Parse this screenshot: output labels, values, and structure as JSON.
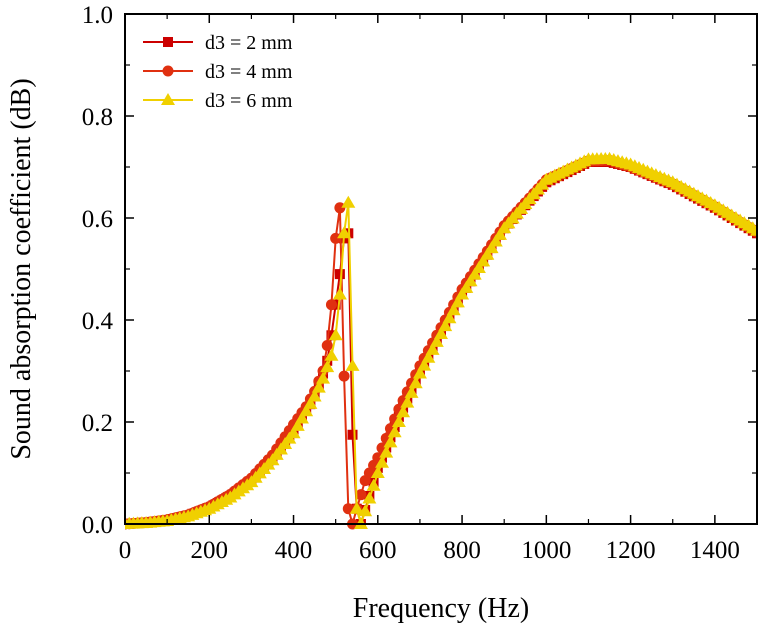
{
  "chart_data": {
    "type": "line",
    "title": "",
    "xlabel": "Frequency (Hz)",
    "ylabel": "Sound absorption coefficient (dB)",
    "xlim": [
      0,
      1500
    ],
    "ylim": [
      0.0,
      1.0
    ],
    "xticks": [
      0,
      200,
      400,
      600,
      800,
      1000,
      1200,
      1400
    ],
    "yticks": [
      0.0,
      0.2,
      0.4,
      0.6,
      0.8,
      1.0
    ],
    "xtick_labels": [
      "0",
      "200",
      "400",
      "600",
      "800",
      "1000",
      "1200",
      "1400"
    ],
    "ytick_labels": [
      "0.0",
      "0.2",
      "0.4",
      "0.6",
      "0.8",
      "1.0"
    ],
    "grid": false,
    "legend_position": "top-left",
    "series": [
      {
        "name": "d3 = 2 mm",
        "marker": "square",
        "color": "#cc0000",
        "x": [
          0,
          50,
          100,
          150,
          200,
          250,
          300,
          350,
          400,
          440,
          460,
          480,
          490,
          500,
          510,
          520,
          530,
          540,
          550,
          560,
          580,
          600,
          650,
          700,
          800,
          900,
          1000,
          1100,
          1150,
          1200,
          1300,
          1400,
          1500
        ],
        "y": [
          0.0,
          0.003,
          0.008,
          0.017,
          0.032,
          0.055,
          0.085,
          0.13,
          0.185,
          0.235,
          0.27,
          0.32,
          0.37,
          0.43,
          0.49,
          0.56,
          0.57,
          0.175,
          0.03,
          0.0,
          0.055,
          0.11,
          0.21,
          0.3,
          0.45,
          0.58,
          0.67,
          0.71,
          0.71,
          0.7,
          0.665,
          0.62,
          0.57
        ]
      },
      {
        "name": "d3 = 4 mm",
        "marker": "circle",
        "color": "#e03010",
        "x": [
          0,
          50,
          100,
          150,
          200,
          250,
          300,
          350,
          400,
          430,
          450,
          470,
          480,
          490,
          500,
          510,
          520,
          530,
          540,
          550,
          570,
          600,
          650,
          700,
          800,
          900,
          1000,
          1100,
          1150,
          1200,
          1300,
          1400,
          1500
        ],
        "y": [
          0.0,
          0.003,
          0.008,
          0.018,
          0.034,
          0.058,
          0.09,
          0.135,
          0.195,
          0.23,
          0.26,
          0.3,
          0.35,
          0.43,
          0.56,
          0.62,
          0.29,
          0.03,
          0.0,
          0.03,
          0.085,
          0.13,
          0.225,
          0.31,
          0.46,
          0.585,
          0.675,
          0.712,
          0.713,
          0.7,
          0.667,
          0.622,
          0.572
        ]
      },
      {
        "name": "d3 = 6 mm",
        "marker": "triangle",
        "color": "#f0d000",
        "x": [
          0,
          50,
          100,
          150,
          200,
          250,
          300,
          350,
          400,
          450,
          470,
          490,
          500,
          510,
          520,
          530,
          540,
          550,
          560,
          580,
          600,
          650,
          700,
          800,
          900,
          1000,
          1100,
          1150,
          1200,
          1300,
          1400,
          1500
        ],
        "y": [
          0.0,
          0.002,
          0.006,
          0.015,
          0.03,
          0.052,
          0.082,
          0.125,
          0.178,
          0.25,
          0.285,
          0.33,
          0.37,
          0.45,
          0.57,
          0.63,
          0.31,
          0.03,
          0.0,
          0.05,
          0.1,
          0.2,
          0.295,
          0.45,
          0.58,
          0.675,
          0.715,
          0.716,
          0.705,
          0.67,
          0.625,
          0.575
        ]
      }
    ]
  }
}
